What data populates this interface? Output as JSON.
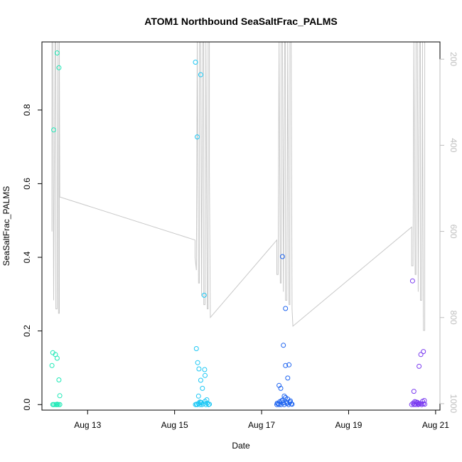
{
  "chart_data": {
    "type": "scatter",
    "title": "ATOM1 Northbound SeaSaltFrac_PALMS",
    "xlabel": "Date",
    "ylabel": "SeaSaltFrac_PALMS",
    "x_tick_labels": [
      "Aug 13",
      "Aug 15",
      "Aug 17",
      "Aug 19",
      "Aug 21"
    ],
    "x_tick_days": [
      13,
      15,
      17,
      19,
      21
    ],
    "xlim_days": [
      11.95,
      21.1
    ],
    "y_tick_labels": [
      "0.0",
      "0.2",
      "0.4",
      "0.6",
      "0.8"
    ],
    "y_ticks": [
      0,
      0.2,
      0.4,
      0.6,
      0.8
    ],
    "ylim": [
      -0.015,
      0.985
    ],
    "y2_tick_labels": [
      "200",
      "400",
      "600",
      "800",
      "1000"
    ],
    "y2_ticks": [
      200,
      400,
      600,
      800,
      1000
    ],
    "y2lim": [
      1015,
      160
    ],
    "y2_color": "#bebebe",
    "pressure_color": "#c8c8c8",
    "series": [
      {
        "color": "#1de9b6",
        "x": [
          12.2,
          12.22,
          12.25,
          12.28,
          12.3,
          12.33,
          12.36,
          12.18,
          12.2,
          12.22,
          12.26,
          12.3,
          12.34,
          12.36,
          12.3,
          12.34,
          12.3
        ],
        "y": [
          0.0,
          0.0,
          0.0,
          0.0,
          0.0,
          0.0,
          0.0,
          0.106,
          0.141,
          0.746,
          0.136,
          0.126,
          0.067,
          0.024,
          0.955,
          0.915,
          0.001
        ]
      },
      {
        "color": "#1ec8f5",
        "x": [
          15.48,
          15.5,
          15.52,
          15.55,
          15.58,
          15.6,
          15.63,
          15.66,
          15.7,
          15.72,
          15.75,
          15.78,
          15.8,
          15.5,
          15.53,
          15.56,
          15.6,
          15.64,
          15.69,
          15.7,
          15.48,
          15.52,
          15.6,
          15.55,
          15.68,
          15.74,
          15.58,
          15.62
        ],
        "y": [
          0.0,
          0.001,
          0.0,
          0.003,
          0.0,
          0.006,
          0.0,
          0.002,
          0.009,
          0.0,
          0.004,
          0.0,
          0.001,
          0.152,
          0.114,
          0.097,
          0.066,
          0.044,
          0.095,
          0.079,
          0.93,
          0.727,
          0.896,
          0.023,
          0.297,
          0.013,
          0.007,
          0.005
        ]
      },
      {
        "color": "#1e64f0",
        "x": [
          17.35,
          17.38,
          17.4,
          17.42,
          17.45,
          17.48,
          17.5,
          17.52,
          17.55,
          17.58,
          17.6,
          17.62,
          17.65,
          17.68,
          17.7,
          17.4,
          17.44,
          17.5,
          17.55,
          17.6,
          17.63,
          17.66,
          17.48,
          17.55,
          17.52,
          17.46,
          17.58,
          17.36
        ],
        "y": [
          0.0,
          0.002,
          0.0,
          0.008,
          0.0,
          0.012,
          0.005,
          0.0,
          0.019,
          0.003,
          0.015,
          0.0,
          0.007,
          0.002,
          0.001,
          0.052,
          0.044,
          0.161,
          0.106,
          0.072,
          0.108,
          0.01,
          0.402,
          0.261,
          0.023,
          0.01,
          0.006,
          0.004
        ]
      },
      {
        "color": "#7b3cf0",
        "x": [
          20.45,
          20.48,
          20.5,
          20.52,
          20.55,
          20.58,
          20.6,
          20.62,
          20.65,
          20.68,
          20.7,
          20.72,
          20.75,
          20.5,
          20.52,
          20.58,
          20.62,
          20.66,
          20.72,
          20.47,
          20.55,
          20.6,
          20.74,
          20.68
        ],
        "y": [
          0.0,
          0.004,
          0.0,
          0.002,
          0.0,
          0.006,
          0.0,
          0.001,
          0.003,
          0.0,
          0.009,
          0.002,
          0.001,
          0.036,
          0.008,
          0.005,
          0.104,
          0.136,
          0.144,
          0.336,
          0.007,
          0.002,
          0.011,
          0.0
        ]
      }
    ],
    "pressure_line": {
      "x": [
        12.18,
        12.18,
        12.2,
        12.22,
        12.22,
        12.25,
        12.27,
        12.27,
        12.3,
        12.32,
        12.32,
        12.33,
        12.35,
        12.35,
        12.36,
        15.47,
        15.47,
        15.5,
        15.52,
        15.52,
        15.55,
        15.57,
        15.57,
        15.6,
        15.62,
        15.62,
        15.65,
        15.67,
        15.67,
        15.7,
        15.72,
        15.72,
        15.75,
        15.77,
        15.77,
        15.8,
        15.8,
        15.82,
        17.35,
        17.35,
        17.38,
        17.4,
        17.4,
        17.43,
        17.45,
        17.45,
        17.48,
        17.5,
        17.5,
        17.53,
        17.55,
        17.55,
        17.58,
        17.6,
        17.6,
        17.63,
        17.65,
        17.65,
        17.68,
        17.7,
        17.7,
        17.72,
        20.45,
        20.45,
        20.48,
        20.5,
        20.5,
        20.53,
        20.55,
        20.55,
        20.58,
        20.6,
        20.6,
        20.63,
        20.65,
        20.65,
        20.68,
        20.7,
        20.7,
        20.72,
        20.75,
        20.75
      ],
      "y": [
        600,
        160,
        160,
        760,
        760,
        160,
        160,
        780,
        780,
        160,
        160,
        790,
        790,
        160,
        520,
        620,
        660,
        690,
        160,
        160,
        720,
        720,
        160,
        160,
        750,
        750,
        160,
        160,
        770,
        770,
        160,
        160,
        780,
        780,
        160,
        160,
        460,
        800,
        620,
        700,
        700,
        160,
        160,
        720,
        720,
        160,
        160,
        740,
        740,
        160,
        160,
        760,
        760,
        160,
        160,
        770,
        770,
        160,
        160,
        780,
        780,
        820,
        590,
        680,
        680,
        160,
        160,
        700,
        700,
        160,
        160,
        740,
        740,
        160,
        160,
        760,
        760,
        160,
        290,
        830,
        830,
        160
      ]
    }
  }
}
